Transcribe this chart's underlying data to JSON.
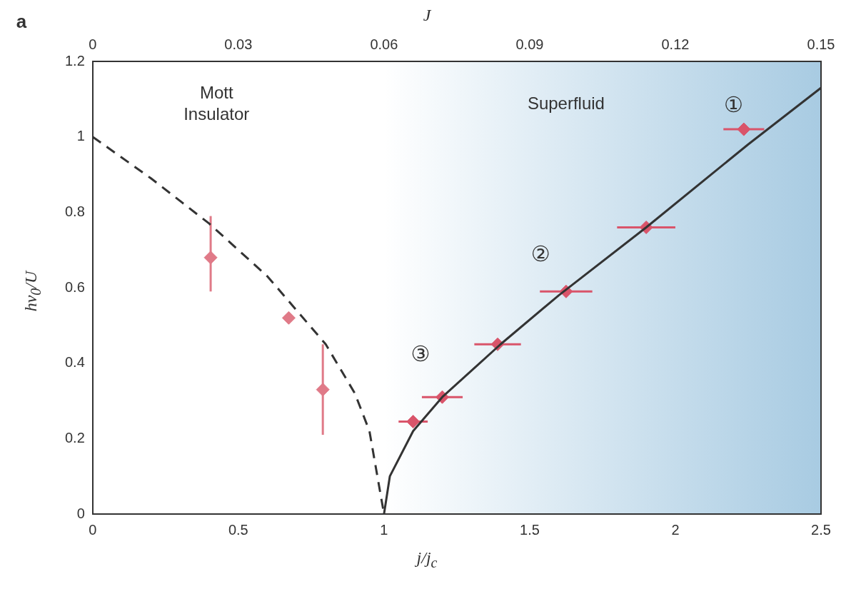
{
  "chart_data": {
    "type": "scatter",
    "xlabel": "j/j$_{c}$",
    "x2label": "J",
    "ylabel": "hν$_{0}$/U",
    "xlim": [
      0,
      2.5
    ],
    "xticks": [
      0,
      0.5,
      1,
      1.5,
      2,
      2.5
    ],
    "x2lim": [
      0,
      0.15
    ],
    "x2ticks": [
      0,
      0.03,
      0.06,
      0.09,
      0.12,
      0.15
    ],
    "ylim": [
      0,
      1.2
    ],
    "yticks": [
      0,
      0.2,
      0.4,
      0.6,
      0.8,
      1,
      1.2
    ],
    "grid": false,
    "legend": false,
    "bands": [
      {
        "axis": "x",
        "from": 1,
        "to": 2.5,
        "color": "#a8cbe2"
      }
    ],
    "annotations": [
      "a",
      "Mott Insulator",
      "Superfluid",
      "①",
      "②",
      "③"
    ],
    "series": [
      {
        "type": "line",
        "color": "#333333",
        "line_style": "dashed",
        "x": [
          0,
          0.2,
          0.4,
          0.6,
          0.8,
          0.9,
          0.95,
          1
        ],
        "values": [
          1,
          0.89,
          0.77,
          0.63,
          0.45,
          0.32,
          0.22,
          0
        ]
      },
      {
        "type": "line",
        "color": "#333333",
        "line_style": "solid",
        "x": [
          1,
          1.02,
          1.1,
          1.2,
          1.4,
          1.6,
          1.9,
          2.25,
          2.5
        ],
        "values": [
          0,
          0.1,
          0.22,
          0.31,
          0.45,
          0.58,
          0.76,
          0.98,
          1.13
        ]
      },
      {
        "marker": "diamond",
        "color": "#e07a88",
        "x": [
          0.405,
          0.673,
          0.79
        ],
        "values": [
          0.68,
          0.52,
          0.33
        ],
        "errors": [
          [
            0.59,
            0.79
          ],
          null,
          [
            0.21,
            0.45
          ]
        ]
      },
      {
        "marker": "diamond",
        "color": "#d9546a",
        "x": [
          1.1,
          1.2,
          1.39,
          1.625,
          1.9,
          2.235
        ],
        "values": [
          0.245,
          0.31,
          0.45,
          0.59,
          0.76,
          1.02
        ],
        "xerrors": [
          0.05,
          0.07,
          0.08,
          0.09,
          0.1,
          0.07
        ]
      }
    ]
  }
}
